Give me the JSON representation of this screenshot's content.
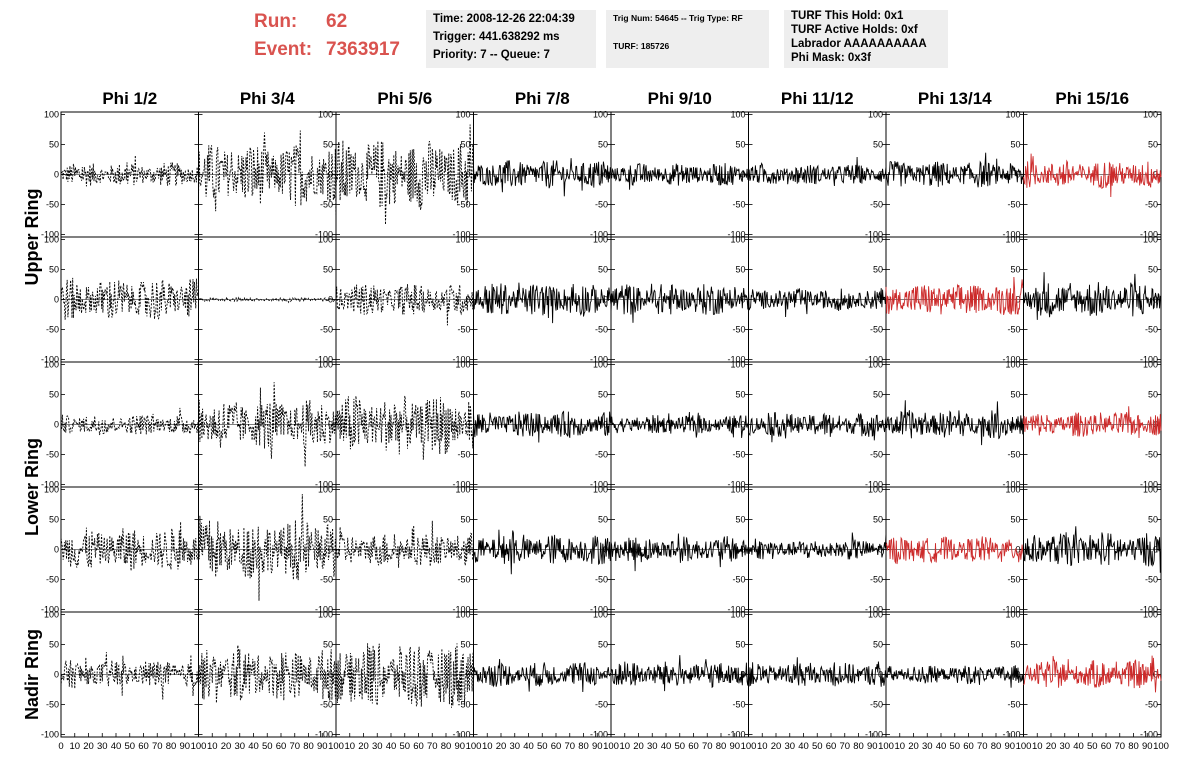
{
  "run": {
    "label": "Run:",
    "value": "62"
  },
  "event": {
    "label": "Event:",
    "value": "7363917"
  },
  "info_boxes": {
    "time": "Time: 2008-12-26 22:04:39",
    "trigger": "Trigger: 441.638292 ms",
    "priority": "Priority: 7 -- Queue: 7",
    "trig_num": "Trig Num: 54645 -- Trig Type: RF",
    "turf": "TURF: 185726",
    "turf_hold": "TURF This Hold: 0x1",
    "turf_active": "TURF Active Holds: 0xf",
    "labrador": "Labrador AAAAAAAAAA",
    "phi_mask": "Phi Mask: 0x3f"
  },
  "colors": {
    "header_red": "#d9534f",
    "trace_black": "#000000",
    "trace_red": "#cc2a2a",
    "box_bg": "#eeeeee"
  },
  "chart_data": {
    "type": "line",
    "columns": [
      "Phi 1/2",
      "Phi 3/4",
      "Phi 5/6",
      "Phi 7/8",
      "Phi 9/10",
      "Phi 11/12",
      "Phi 13/14",
      "Phi 15/16"
    ],
    "row_groups": [
      {
        "label": "Upper Ring",
        "rows": [
          0,
          1
        ]
      },
      {
        "label": "Lower Ring",
        "rows": [
          2,
          3
        ]
      },
      {
        "label": "Nadir Ring",
        "rows": [
          4
        ]
      }
    ],
    "xlim": [
      0,
      100
    ],
    "ylim": [
      -100,
      100
    ],
    "yticks": [
      -100,
      -50,
      0,
      50,
      100
    ],
    "xticks_first": [
      "0",
      "10",
      "20",
      "30",
      "40",
      "50",
      "60",
      "70",
      "80",
      "90",
      "100"
    ],
    "xticks_rest": [
      "10",
      "20",
      "30",
      "40",
      "50",
      "60",
      "70",
      "80",
      "90",
      "100"
    ],
    "panels": [
      [
        {
          "style": "dashed",
          "color": "black",
          "amp": 13
        },
        {
          "style": "dashed",
          "color": "black",
          "amp": 33
        },
        {
          "style": "dashed",
          "color": "black",
          "amp": 38
        },
        {
          "style": "solid",
          "color": "black",
          "amp": 15
        },
        {
          "style": "solid",
          "color": "black",
          "amp": 12
        },
        {
          "style": "solid",
          "color": "black",
          "amp": 11
        },
        {
          "style": "solid",
          "color": "black",
          "amp": 14
        },
        {
          "style": "solid",
          "color": "red",
          "amp": 15
        }
      ],
      [
        {
          "style": "dashed",
          "color": "black",
          "amp": 23
        },
        {
          "style": "dashed",
          "color": "black",
          "amp": 2
        },
        {
          "style": "dashed",
          "color": "black",
          "amp": 17
        },
        {
          "style": "solid",
          "color": "black",
          "amp": 18
        },
        {
          "style": "solid",
          "color": "black",
          "amp": 17
        },
        {
          "style": "solid",
          "color": "black",
          "amp": 12
        },
        {
          "style": "solid",
          "color": "red",
          "amp": 17
        },
        {
          "style": "solid",
          "color": "black",
          "amp": 19
        }
      ],
      [
        {
          "style": "dashed",
          "color": "black",
          "amp": 11
        },
        {
          "style": "dashed",
          "color": "black",
          "amp": 27
        },
        {
          "style": "dashed",
          "color": "black",
          "amp": 32
        },
        {
          "style": "solid",
          "color": "black",
          "amp": 14
        },
        {
          "style": "solid",
          "color": "black",
          "amp": 10
        },
        {
          "style": "solid",
          "color": "black",
          "amp": 13
        },
        {
          "style": "solid",
          "color": "black",
          "amp": 15
        },
        {
          "style": "solid",
          "color": "red",
          "amp": 13
        }
      ],
      [
        {
          "style": "dashed",
          "color": "black",
          "amp": 23
        },
        {
          "style": "dashed",
          "color": "black",
          "amp": 33
        },
        {
          "style": "dashed",
          "color": "black",
          "amp": 18
        },
        {
          "style": "solid",
          "color": "black",
          "amp": 16
        },
        {
          "style": "solid",
          "color": "black",
          "amp": 14
        },
        {
          "style": "solid",
          "color": "black",
          "amp": 11
        },
        {
          "style": "solid",
          "color": "red",
          "amp": 14
        },
        {
          "style": "solid",
          "color": "black",
          "amp": 18
        }
      ],
      [
        {
          "style": "dashed",
          "color": "black",
          "amp": 15
        },
        {
          "style": "dashed",
          "color": "black",
          "amp": 28
        },
        {
          "style": "dashed",
          "color": "black",
          "amp": 36
        },
        {
          "style": "solid",
          "color": "black",
          "amp": 13
        },
        {
          "style": "solid",
          "color": "black",
          "amp": 14
        },
        {
          "style": "solid",
          "color": "black",
          "amp": 13
        },
        {
          "style": "solid",
          "color": "black",
          "amp": 10
        },
        {
          "style": "solid",
          "color": "red",
          "amp": 15
        }
      ]
    ]
  }
}
